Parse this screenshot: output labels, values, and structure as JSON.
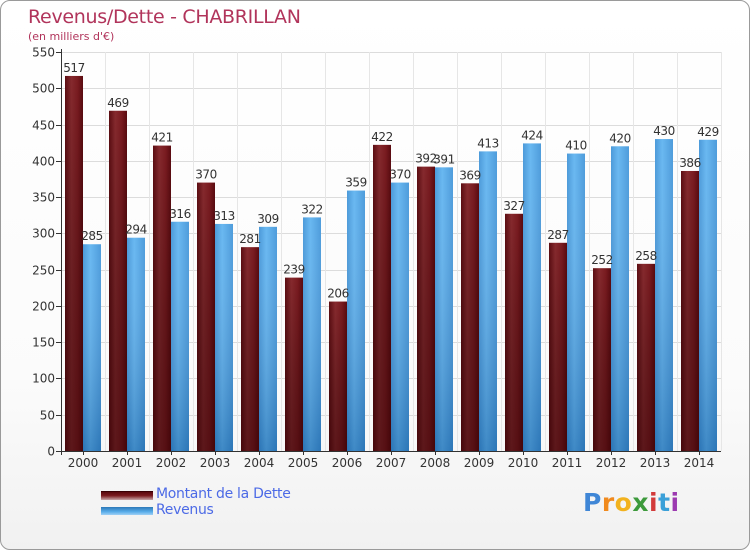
{
  "header": {
    "title": "Revenus/Dette - CHABRILLAN",
    "subtitle": "(en milliers d'€)"
  },
  "chart_data": {
    "type": "bar",
    "categories": [
      "2000",
      "2001",
      "2002",
      "2003",
      "2004",
      "2005",
      "2006",
      "2007",
      "2008",
      "2009",
      "2010",
      "2011",
      "2012",
      "2013",
      "2014"
    ],
    "series": [
      {
        "name": "Montant de la Dette",
        "values": [
          517,
          469,
          421,
          370,
          281,
          239,
          206,
          422,
          392,
          369,
          327,
          287,
          252,
          258,
          386
        ],
        "color": "#7a1a1e"
      },
      {
        "name": "Revenus",
        "values": [
          285,
          294,
          316,
          313,
          309,
          322,
          359,
          370,
          391,
          413,
          424,
          410,
          420,
          430,
          429
        ],
        "color": "#4da3e6"
      }
    ],
    "ylim": [
      0,
      550
    ],
    "yticks": [
      0,
      50,
      100,
      150,
      200,
      250,
      300,
      350,
      400,
      450,
      500,
      550
    ],
    "grid": true,
    "legend": "bottom-left"
  },
  "legend": {
    "items": [
      {
        "label": "Montant de la Dette",
        "kind": "debt"
      },
      {
        "label": "Revenus",
        "kind": "rev"
      }
    ]
  },
  "logo": {
    "letters": [
      "P",
      "r",
      "o",
      "x",
      "i",
      "t",
      "i"
    ]
  }
}
